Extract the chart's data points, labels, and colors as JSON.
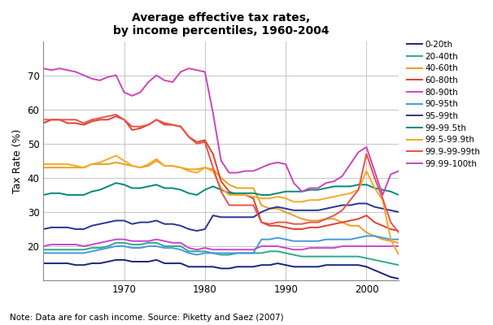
{
  "title": "Average effective tax rates,\nby income percentiles, 1960-2004",
  "ylabel": "Tax Rate (%)",
  "note": "Note: Data are for cash income. Source: Piketty and Saez (2007)",
  "ylim": [
    10,
    80
  ],
  "xlim": [
    1960,
    2004
  ],
  "yticks": [
    20,
    30,
    40,
    50,
    60,
    70
  ],
  "xticks": [
    1970,
    1980,
    1990,
    2000
  ],
  "series": {
    "0-20th": {
      "color": "#1a237e",
      "lw": 1.4,
      "years": [
        1960,
        1961,
        1962,
        1963,
        1964,
        1965,
        1966,
        1967,
        1968,
        1969,
        1970,
        1971,
        1972,
        1973,
        1974,
        1975,
        1976,
        1977,
        1978,
        1979,
        1980,
        1981,
        1982,
        1983,
        1984,
        1985,
        1986,
        1987,
        1988,
        1989,
        1990,
        1991,
        1992,
        1993,
        1994,
        1995,
        1996,
        1997,
        1998,
        1999,
        2000,
        2001,
        2002,
        2003,
        2004
      ],
      "values": [
        15,
        15,
        15,
        15,
        14.5,
        14.5,
        15,
        15,
        15.5,
        16,
        16,
        15.5,
        15.5,
        15.5,
        16,
        15,
        15,
        15,
        14,
        14,
        14,
        14,
        13.5,
        13.5,
        14,
        14,
        14,
        14.5,
        14.5,
        15,
        14.5,
        14,
        14,
        14,
        14,
        14.5,
        14.5,
        14.5,
        14.5,
        14.5,
        14,
        13,
        12,
        11,
        10.5
      ]
    },
    "20-40th": {
      "color": "#2aaa8a",
      "lw": 1.4,
      "years": [
        1960,
        1961,
        1962,
        1963,
        1964,
        1965,
        1966,
        1967,
        1968,
        1969,
        1970,
        1971,
        1972,
        1973,
        1974,
        1975,
        1976,
        1977,
        1978,
        1979,
        1980,
        1981,
        1982,
        1983,
        1984,
        1985,
        1986,
        1987,
        1988,
        1989,
        1990,
        1991,
        1992,
        1993,
        1994,
        1995,
        1996,
        1997,
        1998,
        1999,
        2000,
        2001,
        2002,
        2003,
        2004
      ],
      "values": [
        19,
        19,
        19,
        19,
        19,
        19,
        19.5,
        19.5,
        20,
        21,
        21,
        20.5,
        20.5,
        21,
        21,
        20,
        20,
        20,
        18.5,
        18.5,
        18.5,
        18,
        17.5,
        17.5,
        18,
        18,
        18,
        18,
        18.5,
        18.5,
        18,
        17.5,
        17,
        17,
        17,
        17,
        17,
        17,
        17,
        17,
        16.5,
        16,
        15.5,
        15,
        14.5
      ]
    },
    "40-60th": {
      "color": "#e8a020",
      "lw": 1.4,
      "years": [
        1960,
        1961,
        1962,
        1963,
        1964,
        1965,
        1966,
        1967,
        1968,
        1969,
        1970,
        1971,
        1972,
        1973,
        1974,
        1975,
        1976,
        1977,
        1978,
        1979,
        1980,
        1981,
        1982,
        1983,
        1984,
        1985,
        1986,
        1987,
        1988,
        1989,
        1990,
        1991,
        1992,
        1993,
        1994,
        1995,
        1996,
        1997,
        1998,
        1999,
        2000,
        2001,
        2002,
        2003,
        2004
      ],
      "values": [
        43,
        43,
        43,
        43,
        43,
        43,
        44,
        44,
        44,
        44.5,
        44,
        43.5,
        43,
        43.5,
        45,
        43.5,
        43.5,
        43,
        42.5,
        42.5,
        43,
        42.5,
        40,
        38,
        37,
        37,
        37,
        32,
        31,
        31,
        30,
        29,
        28,
        27.5,
        27.5,
        28,
        28,
        27,
        26,
        26,
        24,
        23,
        22,
        21.5,
        21
      ]
    },
    "60-80th": {
      "color": "#e04030",
      "lw": 1.4,
      "years": [
        1960,
        1961,
        1962,
        1963,
        1964,
        1965,
        1966,
        1967,
        1968,
        1969,
        1970,
        1971,
        1972,
        1973,
        1974,
        1975,
        1976,
        1977,
        1978,
        1979,
        1980,
        1981,
        1982,
        1983,
        1984,
        1985,
        1986,
        1987,
        1988,
        1989,
        1990,
        1991,
        1992,
        1993,
        1994,
        1995,
        1996,
        1997,
        1998,
        1999,
        2000,
        2001,
        2002,
        2003,
        2004
      ],
      "values": [
        56,
        57,
        57,
        56,
        56,
        55.5,
        56.5,
        57,
        57,
        58,
        57,
        54,
        54.5,
        55.5,
        57,
        56,
        55.5,
        55,
        52,
        50.5,
        51,
        47,
        39,
        36,
        35,
        35,
        34,
        27,
        26,
        26,
        25.5,
        25,
        25,
        25.5,
        25.5,
        26,
        26.5,
        27,
        27.5,
        28,
        29,
        27,
        26,
        25,
        24.5
      ]
    },
    "80-90th": {
      "color": "#cc44cc",
      "lw": 1.4,
      "years": [
        1960,
        1961,
        1962,
        1963,
        1964,
        1965,
        1966,
        1967,
        1968,
        1969,
        1970,
        1971,
        1972,
        1973,
        1974,
        1975,
        1976,
        1977,
        1978,
        1979,
        1980,
        1981,
        1982,
        1983,
        1984,
        1985,
        1986,
        1987,
        1988,
        1989,
        1990,
        1991,
        1992,
        1993,
        1994,
        1995,
        1996,
        1997,
        1998,
        1999,
        2000,
        2001,
        2002,
        2003,
        2004
      ],
      "values": [
        20,
        20.5,
        20.5,
        20.5,
        20.5,
        20,
        20.5,
        21,
        21.5,
        22,
        22,
        21.5,
        21.5,
        21.5,
        22,
        21.5,
        21,
        21,
        19.5,
        19,
        19.5,
        19,
        19,
        19,
        19,
        19,
        19,
        20,
        20,
        20,
        19.5,
        19,
        19,
        19.5,
        19.5,
        19.5,
        19.5,
        20,
        20,
        20,
        20,
        20,
        20,
        20,
        20
      ]
    },
    "90-95th": {
      "color": "#4499dd",
      "lw": 1.4,
      "years": [
        1960,
        1961,
        1962,
        1963,
        1964,
        1965,
        1966,
        1967,
        1968,
        1969,
        1970,
        1971,
        1972,
        1973,
        1974,
        1975,
        1976,
        1977,
        1978,
        1979,
        1980,
        1981,
        1982,
        1983,
        1984,
        1985,
        1986,
        1987,
        1988,
        1989,
        1990,
        1991,
        1992,
        1993,
        1994,
        1995,
        1996,
        1997,
        1998,
        1999,
        2000,
        2001,
        2002,
        2003,
        2004
      ],
      "values": [
        18,
        18,
        18,
        18,
        18,
        18,
        18.5,
        19,
        19.5,
        20,
        20,
        19.5,
        19.5,
        20,
        20,
        19.5,
        19.5,
        19,
        18,
        17.5,
        18,
        18,
        18,
        18,
        18,
        18,
        18,
        22,
        22,
        22.5,
        22,
        21.5,
        21.5,
        21.5,
        21.5,
        22,
        22,
        22,
        22,
        22.5,
        23,
        23,
        22.5,
        22,
        22
      ]
    },
    "95-99th": {
      "color": "#283593",
      "lw": 1.4,
      "years": [
        1960,
        1961,
        1962,
        1963,
        1964,
        1965,
        1966,
        1967,
        1968,
        1969,
        1970,
        1971,
        1972,
        1973,
        1974,
        1975,
        1976,
        1977,
        1978,
        1979,
        1980,
        1981,
        1982,
        1983,
        1984,
        1985,
        1986,
        1987,
        1988,
        1989,
        1990,
        1991,
        1992,
        1993,
        1994,
        1995,
        1996,
        1997,
        1998,
        1999,
        2000,
        2001,
        2002,
        2003,
        2004
      ],
      "values": [
        25,
        25.5,
        25.5,
        25.5,
        25,
        25,
        26,
        26.5,
        27,
        27.5,
        27.5,
        26.5,
        27,
        27,
        27.5,
        26.5,
        26.5,
        26,
        25,
        24.5,
        25,
        29,
        28.5,
        28.5,
        28.5,
        28.5,
        28.5,
        30,
        31,
        31.5,
        31,
        30.5,
        30.5,
        30.5,
        30.5,
        31,
        31.5,
        32,
        32,
        32.5,
        32.5,
        31.5,
        31,
        30.5,
        30
      ]
    },
    "99-99.5th": {
      "color": "#00897b",
      "lw": 1.4,
      "years": [
        1960,
        1961,
        1962,
        1963,
        1964,
        1965,
        1966,
        1967,
        1968,
        1969,
        1970,
        1971,
        1972,
        1973,
        1974,
        1975,
        1976,
        1977,
        1978,
        1979,
        1980,
        1981,
        1982,
        1983,
        1984,
        1985,
        1986,
        1987,
        1988,
        1989,
        1990,
        1991,
        1992,
        1993,
        1994,
        1995,
        1996,
        1997,
        1998,
        1999,
        2000,
        2001,
        2002,
        2003,
        2004
      ],
      "values": [
        35,
        35.5,
        35.5,
        35,
        35,
        35,
        36,
        36.5,
        37.5,
        38.5,
        38,
        37,
        37,
        37.5,
        38,
        37,
        37,
        36.5,
        35.5,
        35,
        36.5,
        37.5,
        36.5,
        35.5,
        35.5,
        35.5,
        35.5,
        35,
        35,
        35.5,
        36,
        36,
        36,
        36.5,
        36.5,
        37,
        37.5,
        37.5,
        37.5,
        38,
        38,
        37,
        36.5,
        36,
        35
      ]
    },
    "99.5-99.9th": {
      "color": "#f9a825",
      "lw": 1.4,
      "years": [
        1960,
        1961,
        1962,
        1963,
        1964,
        1965,
        1966,
        1967,
        1968,
        1969,
        1970,
        1971,
        1972,
        1973,
        1974,
        1975,
        1976,
        1977,
        1978,
        1979,
        1980,
        1981,
        1982,
        1983,
        1984,
        1985,
        1986,
        1987,
        1988,
        1989,
        1990,
        1991,
        1992,
        1993,
        1994,
        1995,
        1996,
        1997,
        1998,
        1999,
        2000,
        2001,
        2002,
        2003,
        2004
      ],
      "values": [
        44,
        44,
        44,
        44,
        43.5,
        43,
        44,
        44.5,
        45.5,
        46.5,
        45,
        43.5,
        43,
        44,
        45.5,
        43.5,
        43.5,
        43,
        42,
        41.5,
        43,
        42,
        37,
        35,
        35,
        35,
        34.5,
        34,
        34,
        34.5,
        34,
        33,
        33,
        33.5,
        33.5,
        34,
        34.5,
        35,
        35.5,
        36.5,
        42,
        37,
        33.5,
        22,
        17.5
      ]
    },
    "99.9-99-99th": {
      "color": "#e8534a",
      "lw": 1.4,
      "years": [
        1960,
        1961,
        1962,
        1963,
        1964,
        1965,
        1966,
        1967,
        1968,
        1969,
        1970,
        1971,
        1972,
        1973,
        1974,
        1975,
        1976,
        1977,
        1978,
        1979,
        1980,
        1981,
        1982,
        1983,
        1984,
        1985,
        1986,
        1987,
        1988,
        1989,
        1990,
        1991,
        1992,
        1993,
        1994,
        1995,
        1996,
        1997,
        1998,
        1999,
        2000,
        2001,
        2002,
        2003,
        2004
      ],
      "values": [
        57,
        57,
        57,
        57,
        57,
        56,
        57,
        57.5,
        58,
        58.5,
        57,
        55,
        55,
        55.5,
        57,
        55.5,
        55.5,
        55,
        52,
        50,
        50.5,
        43,
        36,
        32,
        32,
        32,
        32,
        27,
        26.5,
        27,
        27,
        26.5,
        26.5,
        27,
        27,
        28,
        29,
        30.5,
        33.5,
        36.5,
        47,
        40,
        34,
        27,
        24
      ]
    },
    "99.99-100th": {
      "color": "#cc44bb",
      "lw": 1.4,
      "years": [
        1960,
        1961,
        1962,
        1963,
        1964,
        1965,
        1966,
        1967,
        1968,
        1969,
        1970,
        1971,
        1972,
        1973,
        1974,
        1975,
        1976,
        1977,
        1978,
        1979,
        1980,
        1981,
        1982,
        1983,
        1984,
        1985,
        1986,
        1987,
        1988,
        1989,
        1990,
        1991,
        1992,
        1993,
        1994,
        1995,
        1996,
        1997,
        1998,
        1999,
        2000,
        2001,
        2002,
        2003,
        2004
      ],
      "values": [
        72,
        71.5,
        72,
        71.5,
        71,
        70,
        69,
        68.5,
        69.5,
        70,
        65,
        64,
        65,
        68,
        70,
        68.5,
        68,
        71,
        72,
        71.5,
        71,
        59,
        45,
        41.5,
        41.5,
        42,
        42,
        43,
        44,
        44.5,
        44,
        38.5,
        36,
        37,
        37,
        38.5,
        39,
        40.5,
        44,
        47.5,
        49,
        42,
        35,
        41,
        42
      ]
    }
  },
  "legend_order": [
    "0-20th",
    "20-40th",
    "40-60th",
    "60-80th",
    "80-90th",
    "90-95th",
    "95-99th",
    "99-99.5th",
    "99.5-99.9th",
    "99.9-99-99th",
    "99.99-100th"
  ],
  "legend_labels": [
    "0-20th",
    "20-40th",
    "40-60th",
    "60-80th",
    "80-90th",
    "90-95th",
    "95-99th",
    "99-99.5th",
    "99.5-99.9th",
    "99.9-99-99th",
    "99.99-100th"
  ]
}
